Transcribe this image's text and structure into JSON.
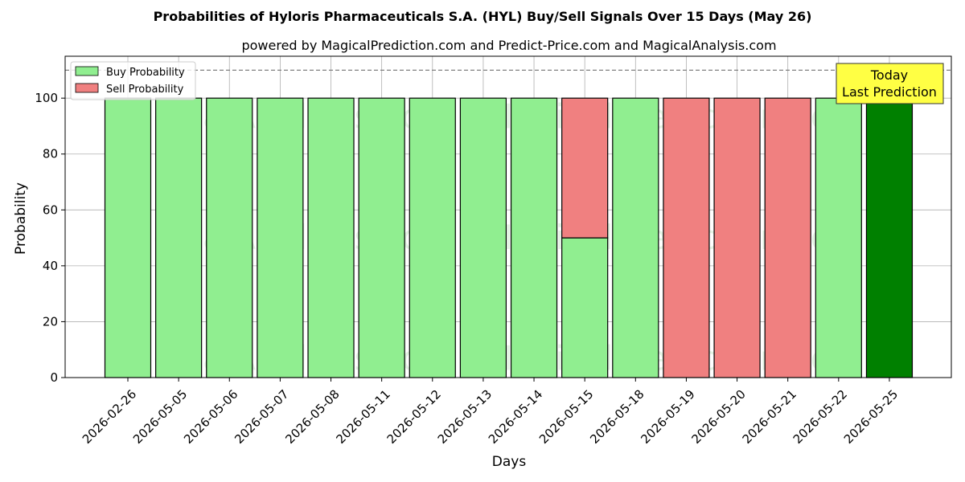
{
  "chart_data": {
    "type": "bar",
    "stacked": true,
    "title": "Probabilities of Hyloris Pharmaceuticals S.A. (HYL) Buy/Sell Signals Over 15 Days (May 26)",
    "subtitle": "powered by MagicalPrediction.com and Predict-Price.com and MagicalAnalysis.com",
    "xlabel": "Days",
    "ylabel": "Probability",
    "ylim": [
      0,
      115
    ],
    "yticks": [
      0,
      20,
      40,
      60,
      80,
      100
    ],
    "grid": true,
    "legend_position": "top-left",
    "categories": [
      "2026-02-26",
      "2026-05-05",
      "2026-05-06",
      "2026-05-07",
      "2026-05-08",
      "2026-05-11",
      "2026-05-12",
      "2026-05-13",
      "2026-05-14",
      "2026-05-15",
      "2026-05-18",
      "2026-05-19",
      "2026-05-20",
      "2026-05-21",
      "2026-05-22",
      "2026-05-25"
    ],
    "series": [
      {
        "name": "Buy Probability",
        "color": "#90ee90",
        "values": [
          100,
          100,
          100,
          100,
          100,
          100,
          100,
          100,
          100,
          50,
          100,
          0,
          0,
          0,
          100,
          100
        ]
      },
      {
        "name": "Sell Probability",
        "color": "#f08080",
        "values": [
          0,
          0,
          0,
          0,
          0,
          0,
          0,
          0,
          0,
          50,
          0,
          100,
          100,
          100,
          0,
          0
        ]
      }
    ],
    "highlight": {
      "index": 15,
      "color": "#008000"
    },
    "reference_line": {
      "y": 110,
      "style": "dashed",
      "color": "#808080"
    },
    "annotation": {
      "lines": [
        "Today",
        "Last Prediction"
      ],
      "background": "#ffff44"
    },
    "watermarks": [
      "MagicalAnalysis.com",
      "MagicalPrediction.com"
    ]
  }
}
